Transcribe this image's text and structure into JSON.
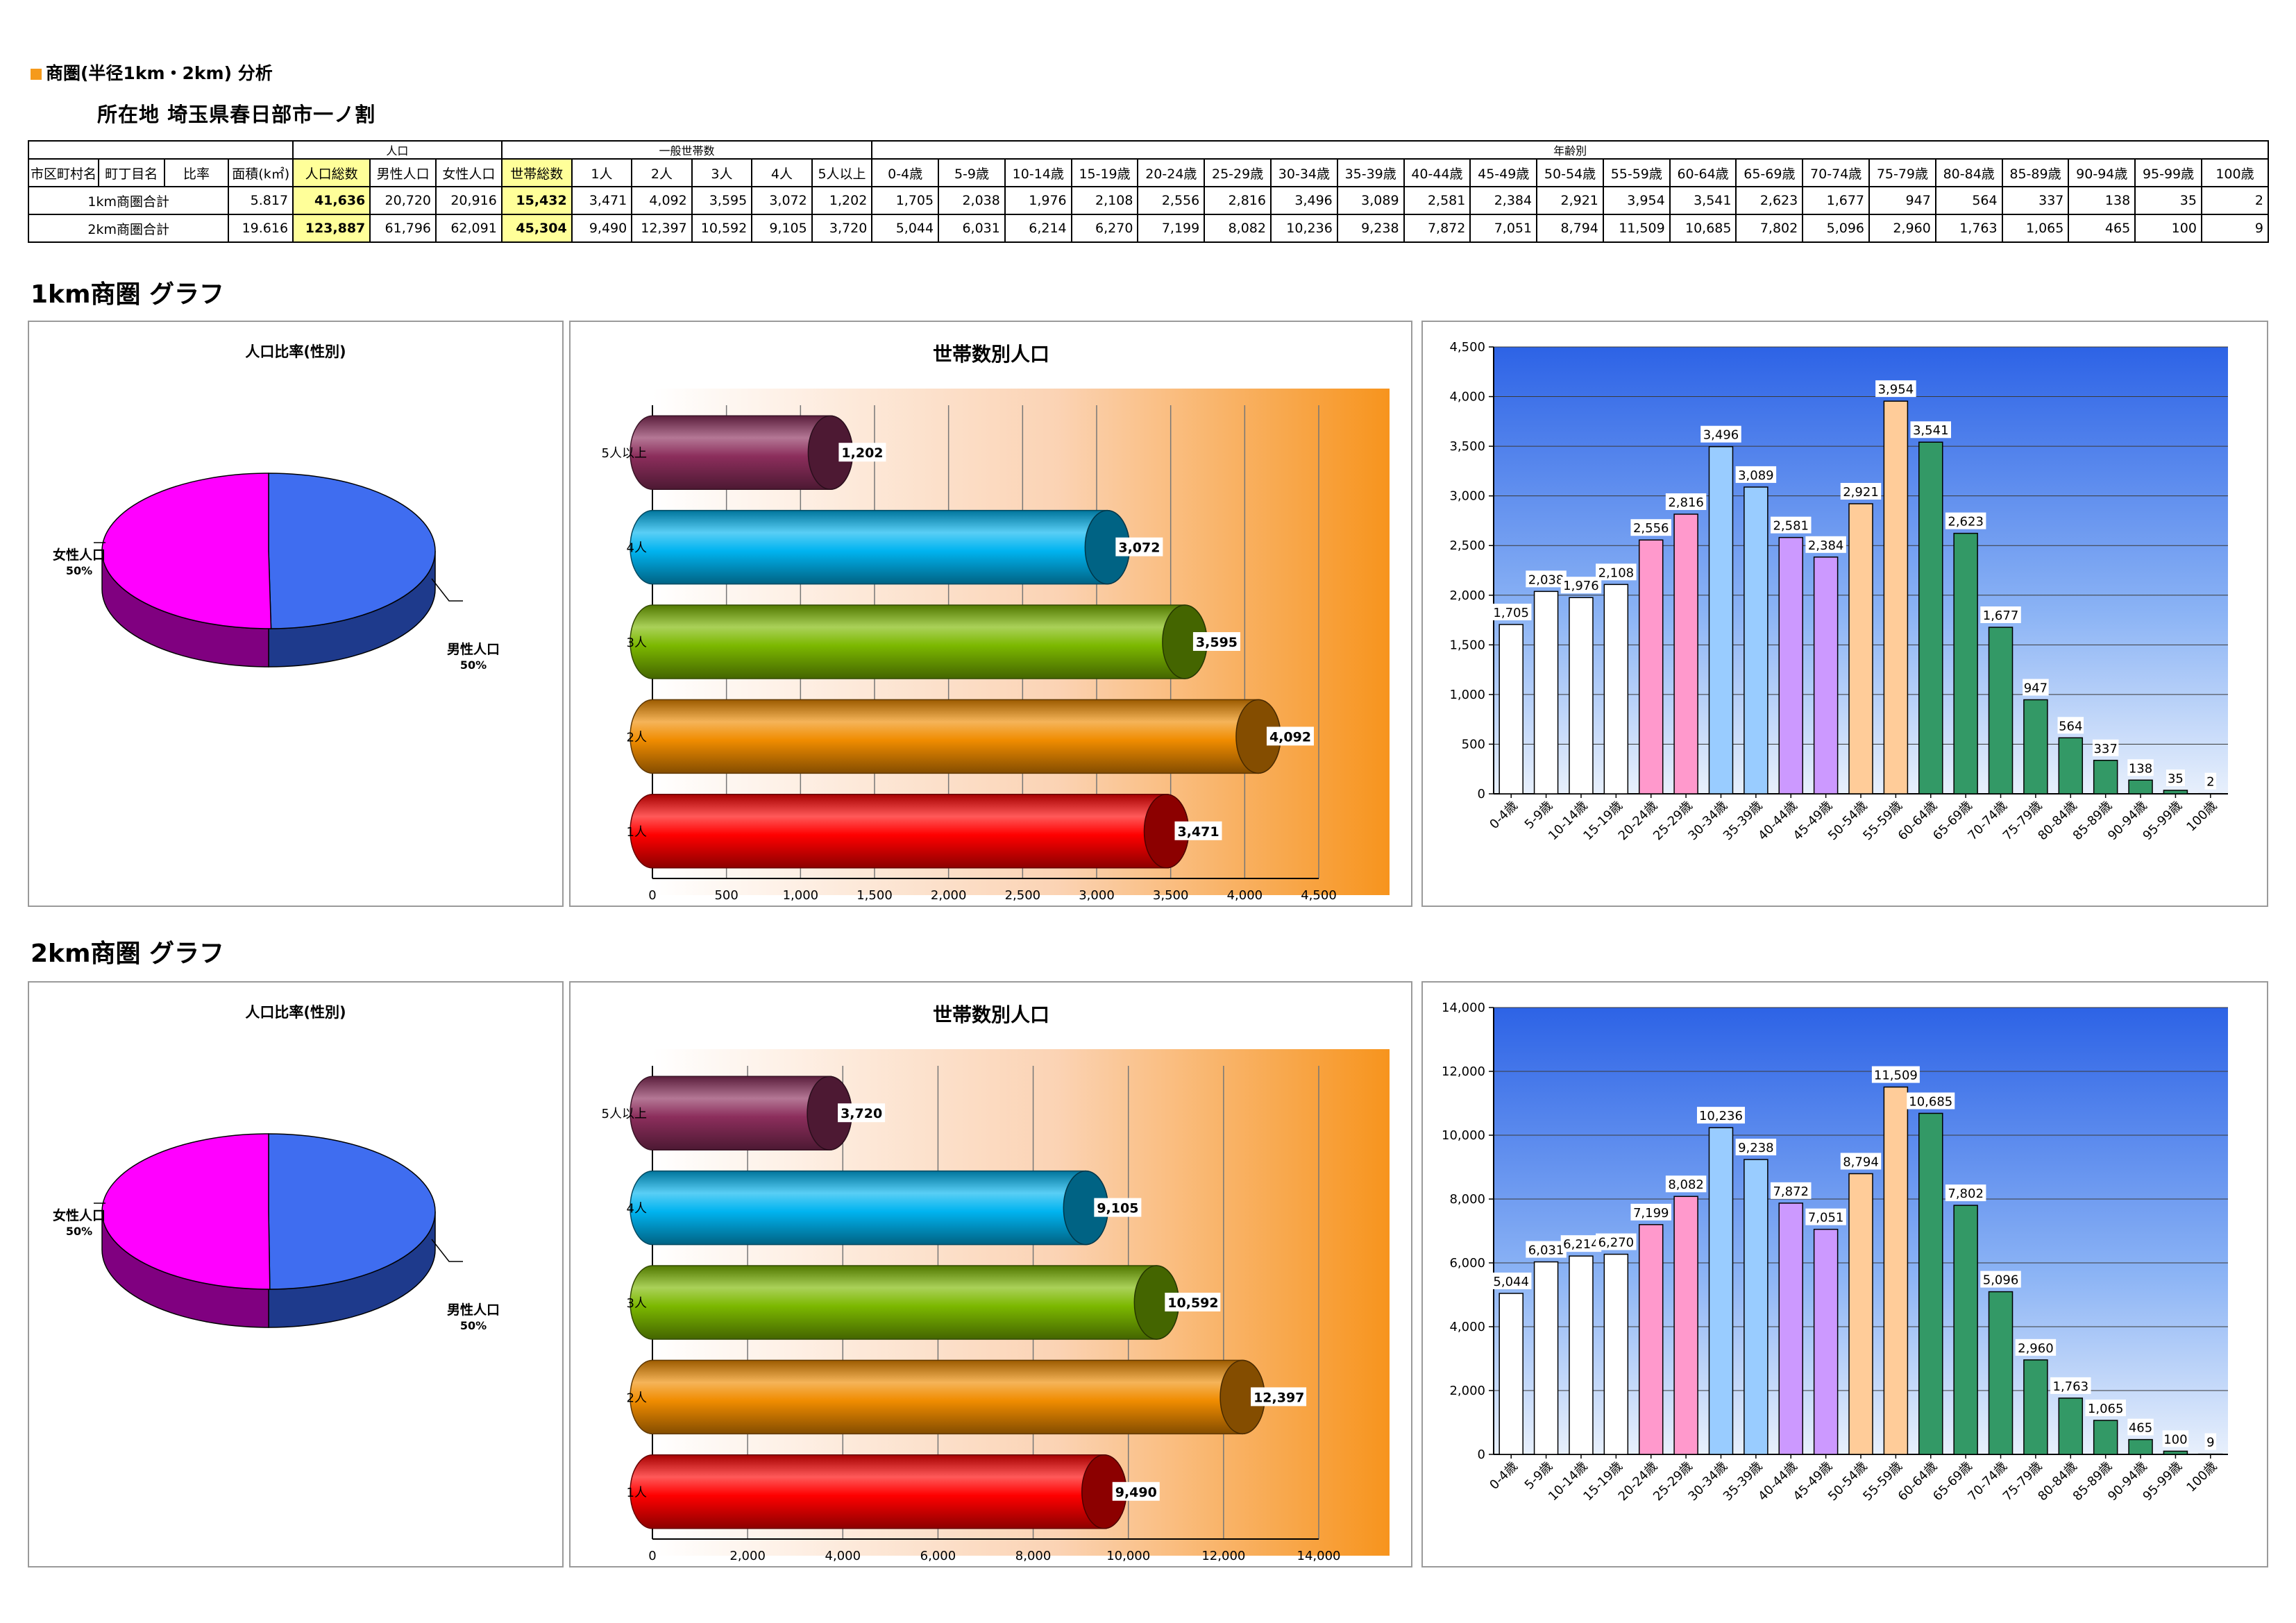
{
  "header": {
    "title": "商圏(半径1km・2km) 分析",
    "location": "所在地 埼玉県春日部市一ノ割"
  },
  "table": {
    "group_headers": {
      "population": "人口",
      "households": "一般世帯数",
      "age": "年齢別"
    },
    "columns": [
      "市区町村名",
      "町丁目名",
      "比率",
      "面積(k㎡)",
      "人口総数",
      "男性人口",
      "女性人口",
      "世帯総数",
      "1人",
      "2人",
      "3人",
      "4人",
      "5人以上",
      "0-4歳",
      "5-9歳",
      "10-14歳",
      "15-19歳",
      "20-24歳",
      "25-29歳",
      "30-34歳",
      "35-39歳",
      "40-44歳",
      "45-49歳",
      "50-54歳",
      "55-59歳",
      "60-64歳",
      "65-69歳",
      "70-74歳",
      "75-79歳",
      "80-84歳",
      "85-89歳",
      "90-94歳",
      "95-99歳",
      "100歳"
    ],
    "rows": [
      {
        "name": "1km商圏合計",
        "area": "5.817",
        "pop_total": "41,636",
        "male": "20,720",
        "female": "20,916",
        "hh_total": "15,432",
        "hh": [
          "3,471",
          "4,092",
          "3,595",
          "3,072",
          "1,202"
        ],
        "age": [
          "1,705",
          "2,038",
          "1,976",
          "2,108",
          "2,556",
          "2,816",
          "3,496",
          "3,089",
          "2,581",
          "2,384",
          "2,921",
          "3,954",
          "3,541",
          "2,623",
          "1,677",
          "947",
          "564",
          "337",
          "138",
          "35",
          "2"
        ]
      },
      {
        "name": "2km商圏合計",
        "area": "19.616",
        "pop_total": "123,887",
        "male": "61,796",
        "female": "62,091",
        "hh_total": "45,304",
        "hh": [
          "9,490",
          "12,397",
          "10,592",
          "9,105",
          "3,720"
        ],
        "age": [
          "5,044",
          "6,031",
          "6,214",
          "6,270",
          "7,199",
          "8,082",
          "10,236",
          "9,238",
          "7,872",
          "7,051",
          "8,794",
          "11,509",
          "10,685",
          "7,802",
          "5,096",
          "2,960",
          "1,763",
          "1,065",
          "465",
          "100",
          "9"
        ]
      }
    ]
  },
  "sections": [
    {
      "title": "1km商圏 グラフ"
    },
    {
      "title": "2km商圏 グラフ"
    }
  ],
  "chart_data": [
    {
      "type": "pie",
      "title": "人口比率(性別)",
      "labels": [
        "男性人口",
        "女性人口"
      ],
      "values": [
        20720,
        20916
      ],
      "percent_labels": [
        "50%",
        "50%"
      ],
      "colors": [
        "#3f6df0",
        "#ff00ff"
      ],
      "side_colors": [
        "#1e3a8c",
        "#800080"
      ]
    },
    {
      "type": "bar",
      "orientation": "horizontal",
      "title": "世帯数別人口",
      "categories": [
        "1人",
        "2人",
        "3人",
        "4人",
        "5人以上"
      ],
      "values": [
        3471,
        4092,
        3595,
        3072,
        1202
      ],
      "value_labels": [
        "3,471",
        "4,092",
        "3,595",
        "3,072",
        "1,202"
      ],
      "xlim": [
        0,
        4500
      ],
      "xticks": [
        0,
        500,
        1000,
        1500,
        2000,
        2500,
        3000,
        3500,
        4000,
        4500
      ],
      "xtick_labels": [
        "0",
        "500",
        "1,000",
        "1,500",
        "2,000",
        "2,500",
        "3,000",
        "3,500",
        "4,000",
        "4,500"
      ],
      "colors": [
        "#ff0000",
        "#f08c00",
        "#7cb800",
        "#00b4f0",
        "#8c2e5c"
      ],
      "grid": true
    },
    {
      "type": "bar",
      "title": "",
      "categories": [
        "0-4歳",
        "5-9歳",
        "10-14歳",
        "15-19歳",
        "20-24歳",
        "25-29歳",
        "30-34歳",
        "35-39歳",
        "40-44歳",
        "45-49歳",
        "50-54歳",
        "55-59歳",
        "60-64歳",
        "65-69歳",
        "70-74歳",
        "75-79歳",
        "80-84歳",
        "85-89歳",
        "90-94歳",
        "95-99歳",
        "100歳"
      ],
      "values": [
        1705,
        2038,
        1976,
        2108,
        2556,
        2816,
        3496,
        3089,
        2581,
        2384,
        2921,
        3954,
        3541,
        2623,
        1677,
        947,
        564,
        337,
        138,
        35,
        2
      ],
      "value_labels": [
        "1,705",
        "2,038",
        "1,976",
        "2,108",
        "2,556",
        "2,816",
        "3,496",
        "3,089",
        "2,581",
        "2,384",
        "2,921",
        "3,954",
        "3,541",
        "2,623",
        "1,677",
        "947",
        "564",
        "337",
        "138",
        "35",
        "2"
      ],
      "ylim": [
        0,
        4500
      ],
      "yticks": [
        0,
        500,
        1000,
        1500,
        2000,
        2500,
        3000,
        3500,
        4000,
        4500
      ],
      "ytick_labels": [
        "0",
        "500",
        "1,000",
        "1,500",
        "2,000",
        "2,500",
        "3,000",
        "3,500",
        "4,000",
        "4,500"
      ],
      "bar_colors": [
        "#ffffff",
        "#ffffff",
        "#ffffff",
        "#ffffff",
        "#ff99cc",
        "#ff99cc",
        "#99ccff",
        "#99ccff",
        "#cc99ff",
        "#cc99ff",
        "#ffcc99",
        "#ffcc99",
        "#339966",
        "#339966",
        "#339966",
        "#339966",
        "#339966",
        "#339966",
        "#339966",
        "#339966",
        "#339966"
      ],
      "grid": true
    },
    {
      "type": "pie",
      "title": "人口比率(性別)",
      "labels": [
        "男性人口",
        "女性人口"
      ],
      "values": [
        61796,
        62091
      ],
      "percent_labels": [
        "50%",
        "50%"
      ],
      "colors": [
        "#3f6df0",
        "#ff00ff"
      ],
      "side_colors": [
        "#1e3a8c",
        "#800080"
      ]
    },
    {
      "type": "bar",
      "orientation": "horizontal",
      "title": "世帯数別人口",
      "categories": [
        "1人",
        "2人",
        "3人",
        "4人",
        "5人以上"
      ],
      "values": [
        9490,
        12397,
        10592,
        9105,
        3720
      ],
      "value_labels": [
        "9,490",
        "12,397",
        "10,592",
        "9,105",
        "3,720"
      ],
      "xlim": [
        0,
        14000
      ],
      "xticks": [
        0,
        2000,
        4000,
        6000,
        8000,
        10000,
        12000,
        14000
      ],
      "xtick_labels": [
        "0",
        "2,000",
        "4,000",
        "6,000",
        "8,000",
        "10,000",
        "12,000",
        "14,000"
      ],
      "colors": [
        "#ff0000",
        "#f08c00",
        "#7cb800",
        "#00b4f0",
        "#8c2e5c"
      ],
      "grid": true
    },
    {
      "type": "bar",
      "title": "",
      "categories": [
        "0-4歳",
        "5-9歳",
        "10-14歳",
        "15-19歳",
        "20-24歳",
        "25-29歳",
        "30-34歳",
        "35-39歳",
        "40-44歳",
        "45-49歳",
        "50-54歳",
        "55-59歳",
        "60-64歳",
        "65-69歳",
        "70-74歳",
        "75-79歳",
        "80-84歳",
        "85-89歳",
        "90-94歳",
        "95-99歳",
        "100歳"
      ],
      "values": [
        5044,
        6031,
        6214,
        6270,
        7199,
        8082,
        10236,
        9238,
        7872,
        7051,
        8794,
        11509,
        10685,
        7802,
        5096,
        2960,
        1763,
        1065,
        465,
        100,
        9
      ],
      "value_labels": [
        "5,044",
        "6,031",
        "6,214",
        "6,270",
        "7,199",
        "8,082",
        "10,236",
        "9,238",
        "7,872",
        "7,051",
        "8,794",
        "11,509",
        "10,685",
        "7,802",
        "5,096",
        "2,960",
        "1,763",
        "1,065",
        "465",
        "100",
        "9"
      ],
      "ylim": [
        0,
        14000
      ],
      "yticks": [
        0,
        2000,
        4000,
        6000,
        8000,
        10000,
        12000,
        14000
      ],
      "ytick_labels": [
        "0",
        "2,000",
        "4,000",
        "6,000",
        "8,000",
        "10,000",
        "12,000",
        "14,000"
      ],
      "bar_colors": [
        "#ffffff",
        "#ffffff",
        "#ffffff",
        "#ffffff",
        "#ff99cc",
        "#ff99cc",
        "#99ccff",
        "#99ccff",
        "#cc99ff",
        "#cc99ff",
        "#ffcc99",
        "#ffcc99",
        "#339966",
        "#339966",
        "#339966",
        "#339966",
        "#339966",
        "#339966",
        "#339966",
        "#339966",
        "#339966"
      ],
      "grid": true
    }
  ]
}
